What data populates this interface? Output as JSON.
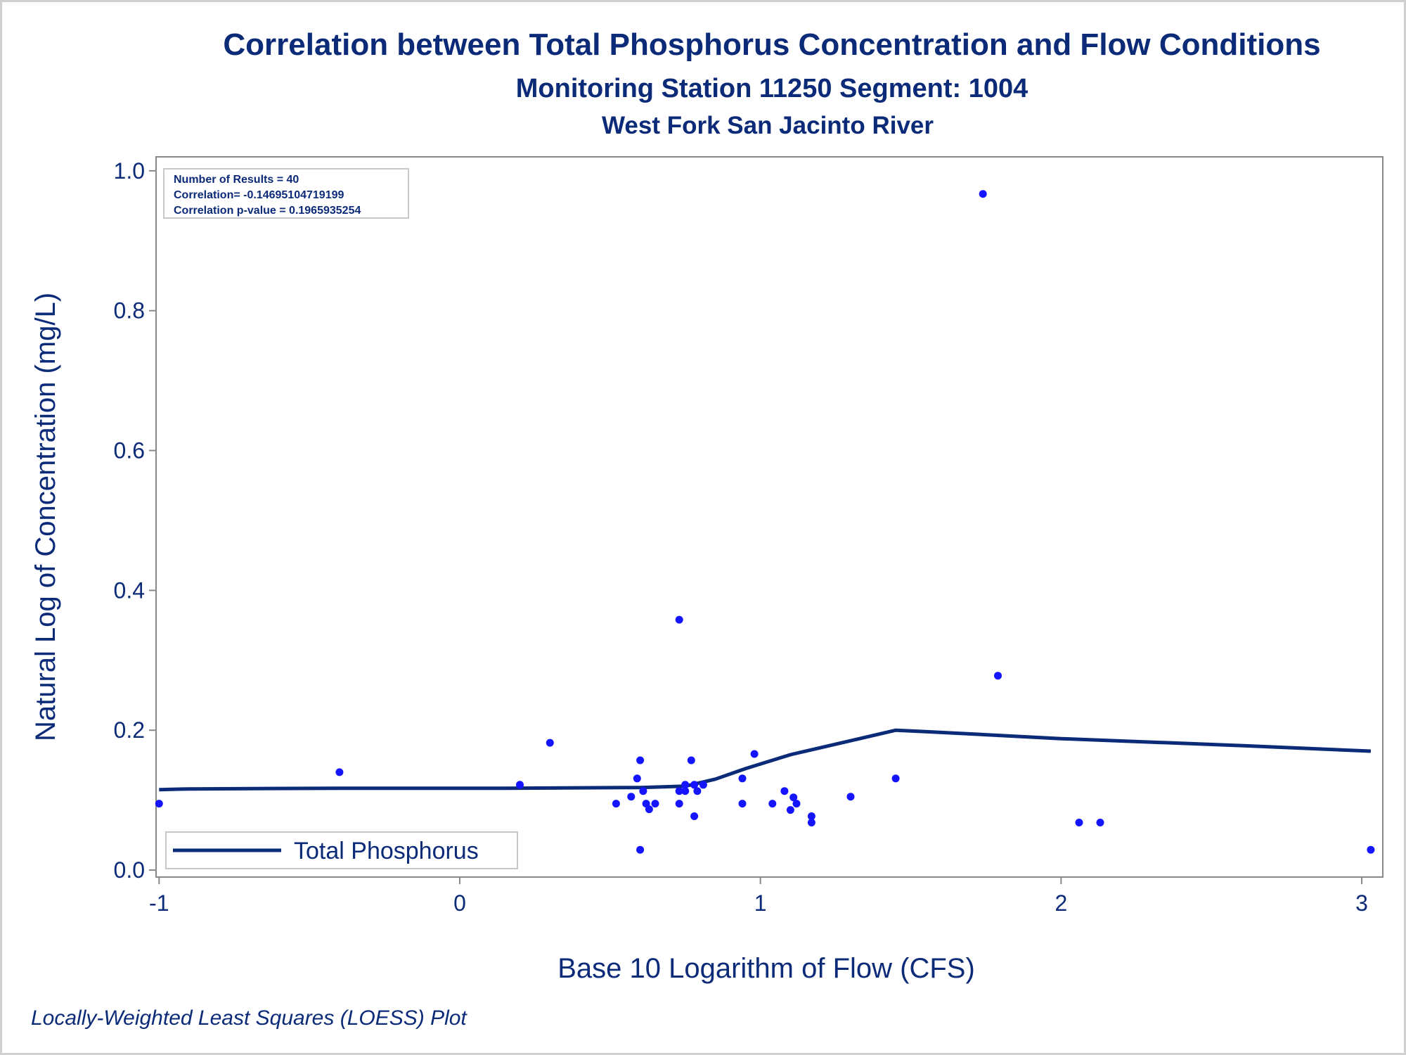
{
  "titles": {
    "main": "Correlation between Total Phosphorus Concentration and Flow Conditions",
    "subtitle": "Monitoring Station 11250 Segment: 1004",
    "location": "West Fork San Jacinto River"
  },
  "stats": {
    "line1": "Number of Results = 40",
    "line2": "Correlation= -0.14695104719199",
    "line3": "Correlation p-value = 0.1965935254"
  },
  "footnote": "Locally-Weighted Least Squares (LOESS) Plot",
  "colors": {
    "text": "#0b2a78",
    "points": "#1414ff",
    "line": "#0b2a78",
    "axes": "#888888"
  },
  "chart_data": {
    "type": "scatter",
    "title": "Correlation between Total Phosphorus Concentration and Flow Conditions",
    "xlabel": "Base 10 Logarithm of Flow (CFS)",
    "ylabel": "Natural Log of Concentration (mg/L)",
    "xlim": [
      -1.01,
      3.07
    ],
    "ylim": [
      -0.01,
      1.02
    ],
    "x_ticks": [
      -1,
      0,
      1,
      2,
      3
    ],
    "x_tick_labels": [
      "-1",
      "0",
      "1",
      "2",
      "3"
    ],
    "y_ticks": [
      0.0,
      0.2,
      0.4,
      0.6,
      0.8,
      1.0
    ],
    "y_tick_labels": [
      "0.0",
      "0.2",
      "0.4",
      "0.6",
      "0.8",
      "1.0"
    ],
    "grid": false,
    "legend_position": "bottom-left",
    "points": [
      {
        "x": -1.0,
        "y": 0.095
      },
      {
        "x": -0.4,
        "y": 0.14
      },
      {
        "x": 0.2,
        "y": 0.122
      },
      {
        "x": 0.3,
        "y": 0.182
      },
      {
        "x": 0.52,
        "y": 0.095
      },
      {
        "x": 0.57,
        "y": 0.105
      },
      {
        "x": 0.59,
        "y": 0.131
      },
      {
        "x": 0.6,
        "y": 0.157
      },
      {
        "x": 0.6,
        "y": 0.029
      },
      {
        "x": 0.61,
        "y": 0.113
      },
      {
        "x": 0.62,
        "y": 0.095
      },
      {
        "x": 0.63,
        "y": 0.087
      },
      {
        "x": 0.65,
        "y": 0.095
      },
      {
        "x": 0.73,
        "y": 0.095
      },
      {
        "x": 0.73,
        "y": 0.113
      },
      {
        "x": 0.73,
        "y": 0.358
      },
      {
        "x": 0.75,
        "y": 0.122
      },
      {
        "x": 0.75,
        "y": 0.113
      },
      {
        "x": 0.77,
        "y": 0.157
      },
      {
        "x": 0.78,
        "y": 0.122
      },
      {
        "x": 0.78,
        "y": 0.077
      },
      {
        "x": 0.79,
        "y": 0.113
      },
      {
        "x": 0.81,
        "y": 0.122
      },
      {
        "x": 0.94,
        "y": 0.131
      },
      {
        "x": 0.94,
        "y": 0.095
      },
      {
        "x": 0.98,
        "y": 0.166
      },
      {
        "x": 1.04,
        "y": 0.095
      },
      {
        "x": 1.08,
        "y": 0.113
      },
      {
        "x": 1.1,
        "y": 0.086
      },
      {
        "x": 1.11,
        "y": 0.104
      },
      {
        "x": 1.12,
        "y": 0.095
      },
      {
        "x": 1.17,
        "y": 0.077
      },
      {
        "x": 1.17,
        "y": 0.068
      },
      {
        "x": 1.3,
        "y": 0.105
      },
      {
        "x": 1.45,
        "y": 0.131
      },
      {
        "x": 1.74,
        "y": 0.967
      },
      {
        "x": 1.79,
        "y": 0.278
      },
      {
        "x": 2.06,
        "y": 0.068
      },
      {
        "x": 2.13,
        "y": 0.068
      },
      {
        "x": 3.03,
        "y": 0.029
      }
    ],
    "series": [
      {
        "name": "Total Phosphorus",
        "type": "line",
        "x": [
          -1.0,
          -0.9,
          -0.4,
          0.15,
          0.6,
          0.75,
          0.85,
          0.95,
          1.1,
          1.35,
          1.45,
          1.55,
          2.0,
          2.6,
          3.03
        ],
        "y": [
          0.115,
          0.116,
          0.117,
          0.117,
          0.118,
          0.12,
          0.13,
          0.145,
          0.165,
          0.19,
          0.2,
          0.198,
          0.188,
          0.178,
          0.17
        ]
      }
    ]
  }
}
